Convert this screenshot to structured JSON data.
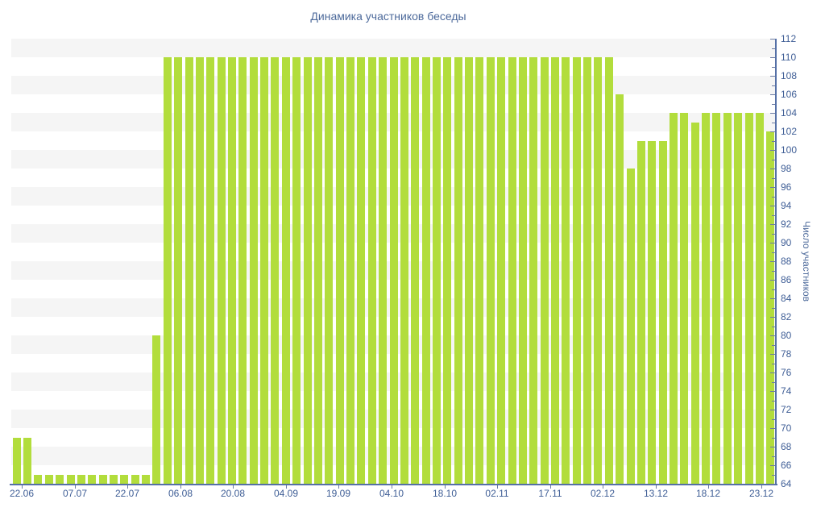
{
  "colors": {
    "bar": "#b2dd3c",
    "axis_line": "#5570a6",
    "tick": "#6b7ba3",
    "tick_label": "#3f5e96",
    "title_text": "#4d6a9b",
    "stripe_gray": "#f5f5f5",
    "background": "#ffffff"
  },
  "chart_data": {
    "type": "bar",
    "title": "Динамика участников беседы",
    "xlabel": "",
    "ylabel": "Число участников",
    "ylim": [
      64,
      112
    ],
    "y_tick_step": 2,
    "y_minor_tick_step": 1,
    "y_tick_labels": [
      64,
      66,
      68,
      70,
      72,
      74,
      76,
      78,
      80,
      82,
      84,
      86,
      88,
      90,
      92,
      94,
      96,
      98,
      100,
      102,
      104,
      106,
      108,
      110,
      112
    ],
    "x_tick_labels": [
      "22.06",
      "07.07",
      "22.07",
      "06.08",
      "20.08",
      "04.09",
      "19.09",
      "04.10",
      "18.10",
      "02.11",
      "17.11",
      "02.12",
      "13.12",
      "18.12",
      "23.12"
    ],
    "legend_position": "none",
    "grid": "horizontal-zebra-bands",
    "values": [
      69,
      69,
      65,
      65,
      65,
      65,
      65,
      65,
      65,
      65,
      65,
      65,
      65,
      80,
      110,
      110,
      110,
      110,
      110,
      110,
      110,
      110,
      110,
      110,
      110,
      110,
      110,
      110,
      110,
      110,
      110,
      110,
      110,
      110,
      110,
      110,
      110,
      110,
      110,
      110,
      110,
      110,
      110,
      110,
      110,
      110,
      110,
      110,
      110,
      110,
      110,
      110,
      110,
      110,
      110,
      110,
      106,
      98,
      101,
      101,
      101,
      104,
      104,
      103,
      104,
      104,
      104,
      104,
      104,
      104,
      102
    ]
  }
}
